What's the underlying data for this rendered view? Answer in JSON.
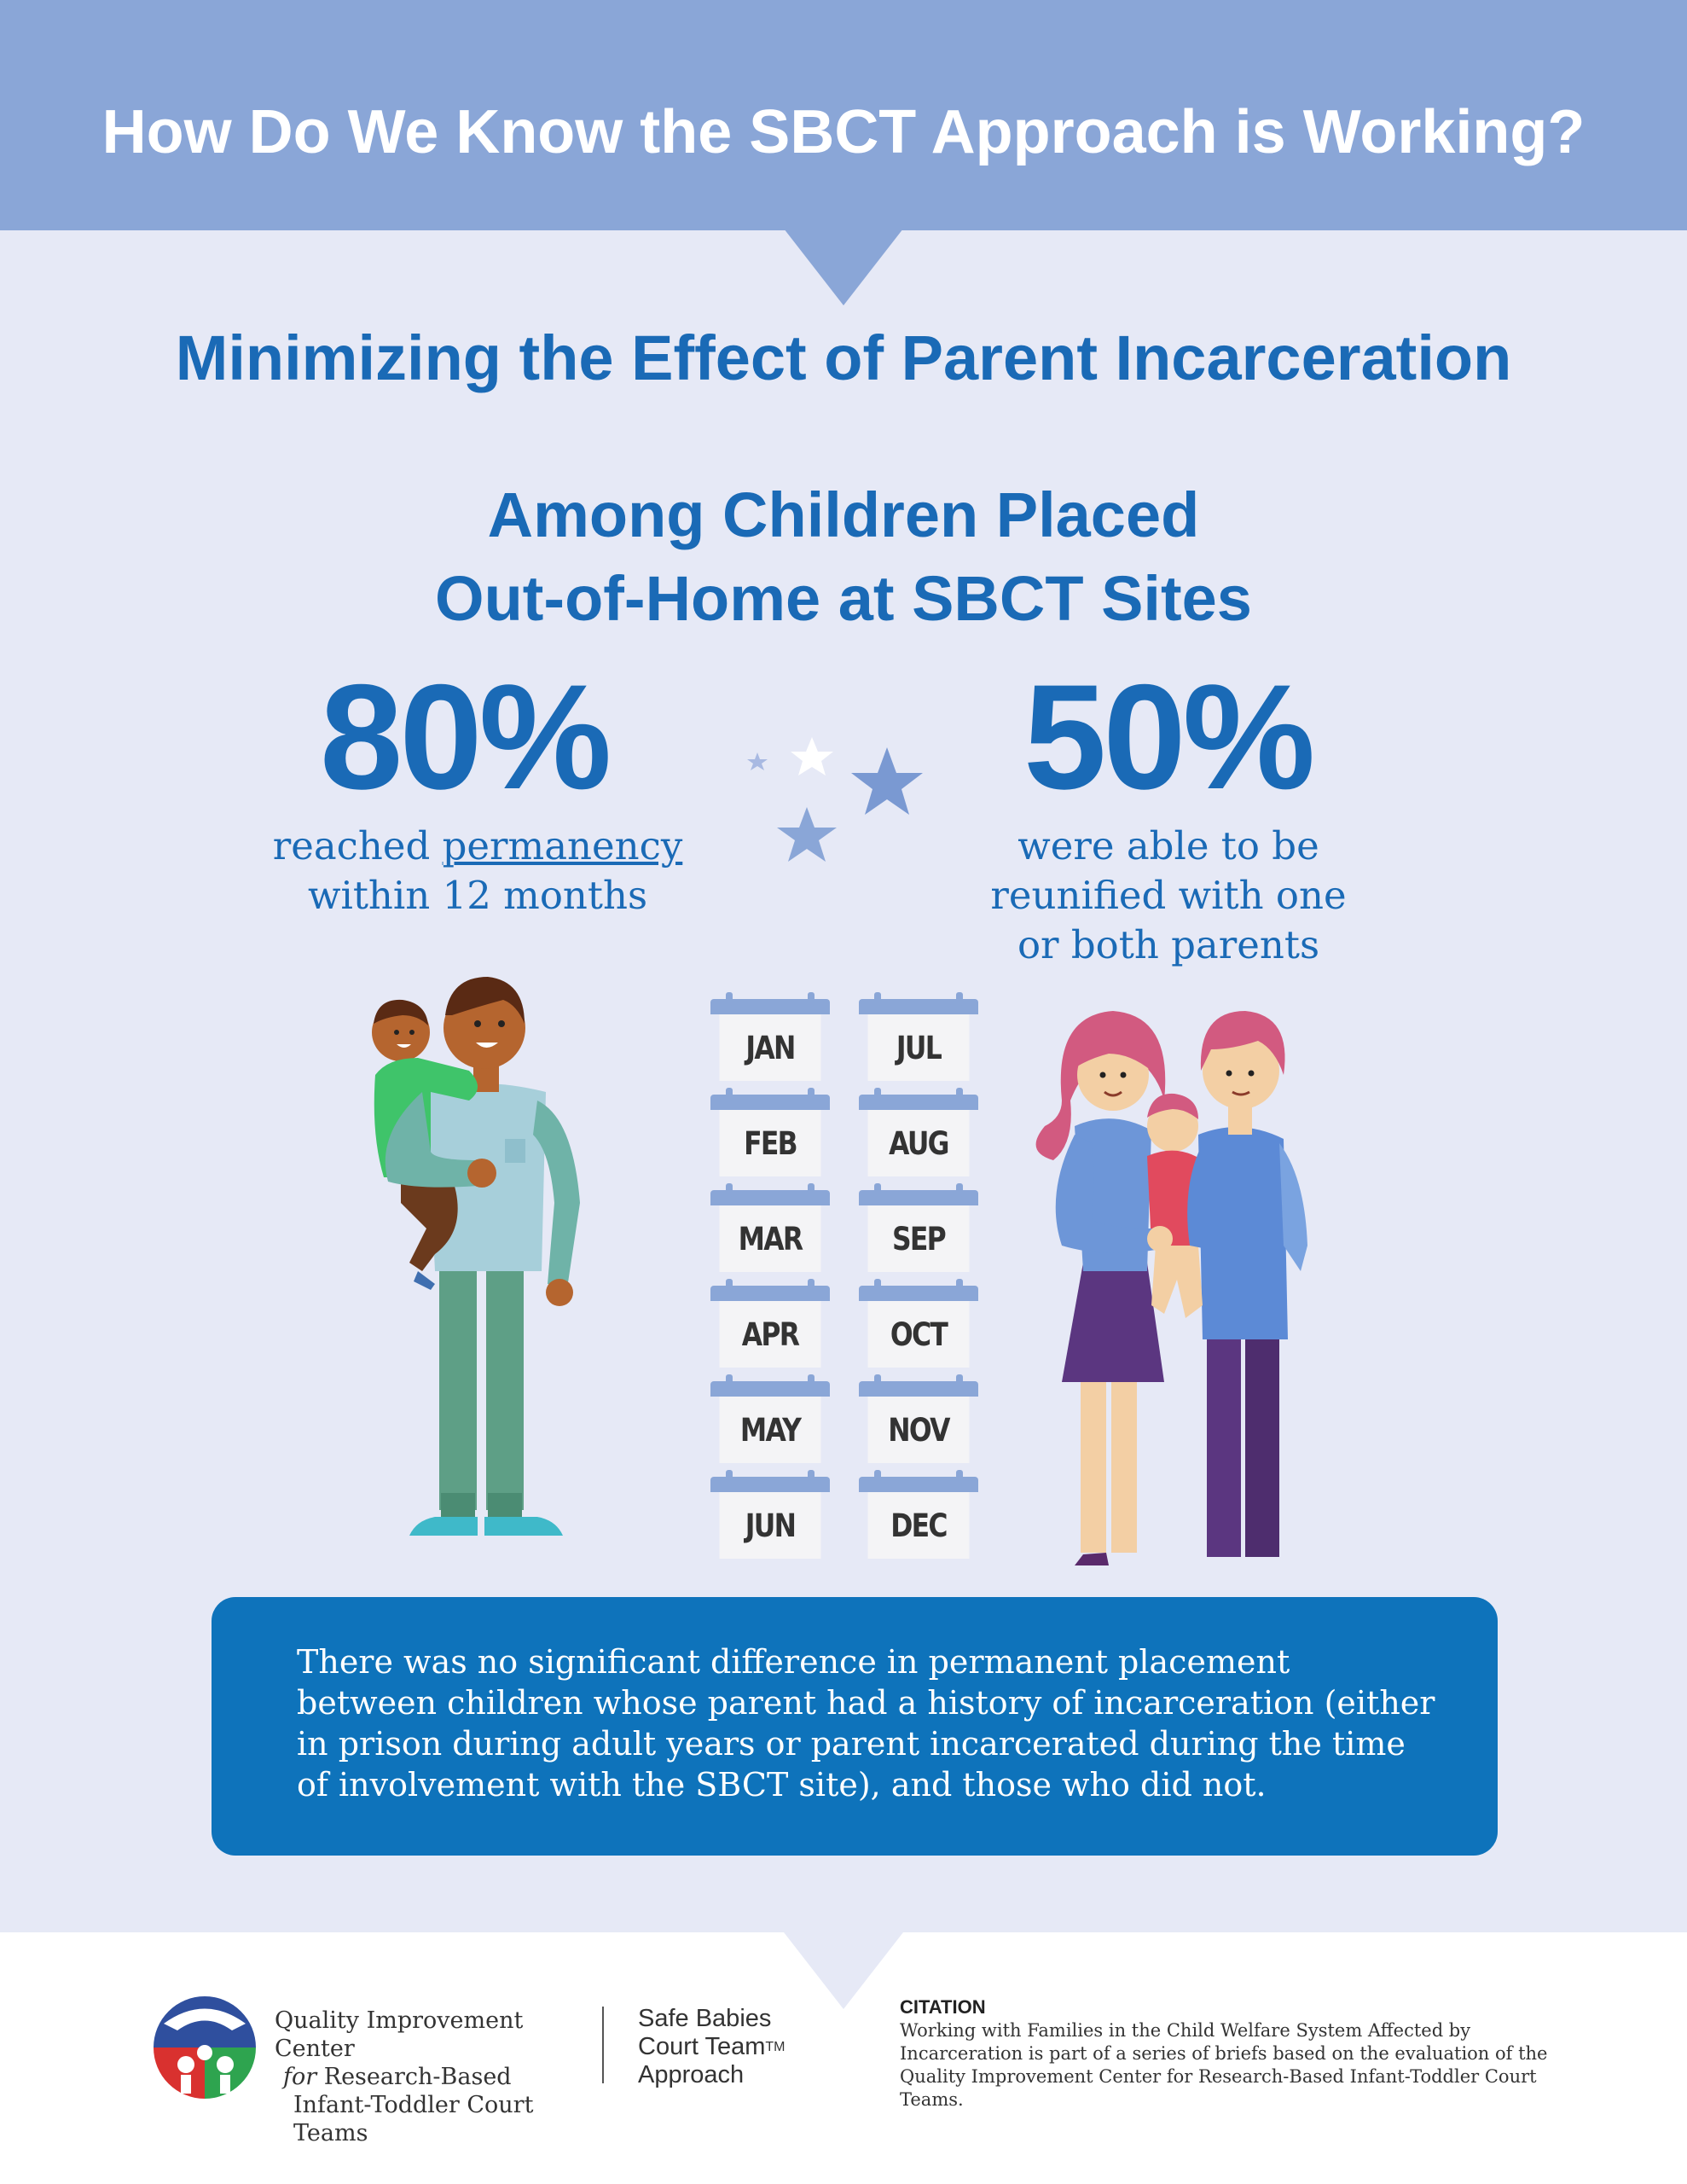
{
  "header": {
    "title": "How Do We Know the SBCT Approach is Working?"
  },
  "subtitle": "Minimizing the Effect of Parent Incarceration",
  "section_title": {
    "line1": "Among Children Placed",
    "line2": "Out-of-Home at SBCT Sites"
  },
  "stats": [
    {
      "value": "80%",
      "desc_prefix": "reached ",
      "desc_link": "permanency",
      "desc_line2": "within 12 months"
    },
    {
      "value": "50%",
      "desc_line1": "were able to be",
      "desc_line2": "reunified with one",
      "desc_line3": "or both parents"
    }
  ],
  "months": [
    "JAN",
    "FEB",
    "MAR",
    "APR",
    "MAY",
    "JUN",
    "JUL",
    "AUG",
    "SEP",
    "OCT",
    "NOV",
    "DEC"
  ],
  "note": "There was no significant difference in permanent placement between children whose parent had a history of incarceration (either in prison during adult years or parent incarcerated during the time of involvement with the SBCT site), and those who did not.",
  "footer": {
    "qic": {
      "line1": "Quality Improvement Center",
      "line2_em": "for",
      "line2": " Research-Based",
      "line3": "Infant-Toddler Court Teams"
    },
    "sbct": {
      "line1": "Safe Babies",
      "line2": "Court Team",
      "tm": "TM",
      "line3": "Approach"
    },
    "citation_heading": "CITATION",
    "citation_text": "Working with Families in the Child Welfare System Affected by Incarceration is part of a series of briefs based on the evaluation of the Quality Improvement Center for Research-Based Infant-Toddler Court Teams."
  },
  "colors": {
    "header_bg": "#8aa6d7",
    "accent_blue": "#1a6ab6",
    "note_bg": "#0e73bb",
    "page_bg": "#e6e9f6"
  }
}
